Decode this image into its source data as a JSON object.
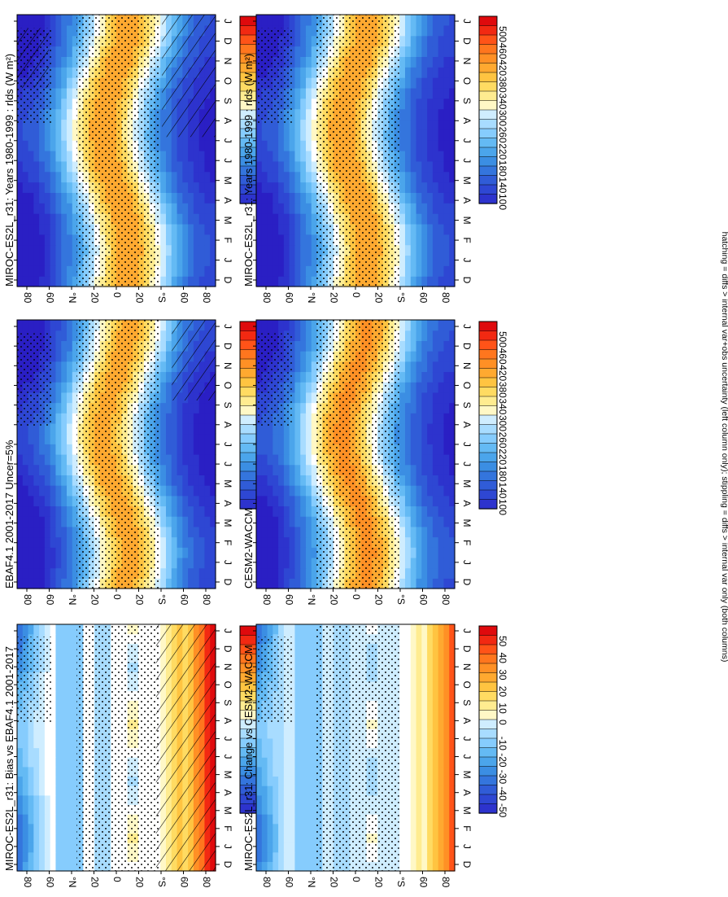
{
  "figure": {
    "footnote": "hatching = diffs > internal var+obs uncertainty (left column only); stippling = diffs > internal var only (both columns)"
  },
  "colors": {
    "abs_scale": [
      "#ffffff",
      "#fff5b0",
      "#ffe16a",
      "#ffc13d",
      "#ff9c28",
      "#ff7a1f",
      "#ff4a16",
      "#e80e0e",
      "#c8000a"
    ],
    "cool_scale": [
      "#ffffff",
      "#bde6ff",
      "#8fd0ff",
      "#60b8f3",
      "#3f9ae6",
      "#3478de",
      "#2f56d6",
      "#2e3ad0",
      "#2a1fc4"
    ],
    "frame": "#000000"
  },
  "chart_data": [
    {
      "id": "p1",
      "type": "heatmap",
      "kind": "abs",
      "title": "MIROC-ES2L_r31: Years 1980-1999 : rlds (W m²)",
      "months": [
        "D",
        "J",
        "F",
        "M",
        "A",
        "M",
        "J",
        "J",
        "A",
        "S",
        "O",
        "N",
        "D",
        "J"
      ],
      "lat_labels": [
        "80",
        "60",
        "°N",
        "20",
        "0",
        "20",
        "°S",
        "60",
        "80"
      ],
      "lat_range": [
        -90,
        90
      ],
      "hatch": "left",
      "stipple": true,
      "colorbar": {
        "ticks": [
          "500",
          "460",
          "420",
          "380",
          "340",
          "300",
          "260",
          "220",
          "180",
          "140",
          "100"
        ],
        "range": [
          80,
          520
        ]
      }
    },
    {
      "id": "p2",
      "type": "heatmap",
      "kind": "abs",
      "title": "EBAF4.1 2001-2017 Uncer=5%",
      "months": [
        "D",
        "J",
        "F",
        "M",
        "A",
        "M",
        "J",
        "J",
        "A",
        "S",
        "O",
        "N",
        "D",
        "J"
      ],
      "lat_labels": [
        "80",
        "60",
        "°N",
        "20",
        "0",
        "20",
        "°S",
        "60",
        "80"
      ],
      "lat_range": [
        -90,
        90
      ],
      "hatch": "south",
      "stipple": true,
      "colorbar": {
        "ticks": [
          "500",
          "460",
          "420",
          "380",
          "340",
          "300",
          "260",
          "220",
          "180",
          "140",
          "100"
        ],
        "range": [
          80,
          520
        ]
      }
    },
    {
      "id": "p3",
      "type": "heatmap",
      "kind": "diff",
      "title": "MIROC-ES2L_r31: Bias vs EBAF4.1 2001-2017",
      "months": [
        "D",
        "J",
        "F",
        "M",
        "A",
        "M",
        "J",
        "J",
        "A",
        "S",
        "O",
        "N",
        "D",
        "J"
      ],
      "lat_labels": [
        "80",
        "60",
        "°N",
        "20",
        "0",
        "20",
        "°S",
        "60",
        "80"
      ],
      "lat_range": [
        -90,
        90
      ],
      "hatch": "southdiff",
      "stipple": true,
      "colorbar": {
        "ticks": [
          "50",
          "40",
          "30",
          "20",
          "10",
          "0",
          "-10",
          "-20",
          "-30",
          "-40",
          "-50"
        ],
        "range": [
          -55,
          55
        ]
      }
    },
    {
      "id": "p4",
      "type": "heatmap",
      "kind": "abs",
      "title": "MIROC-ES2L_r31: Years 1980-1999 : rlds (W m²)",
      "months": [
        "D",
        "J",
        "F",
        "M",
        "A",
        "M",
        "J",
        "J",
        "A",
        "S",
        "O",
        "N",
        "D",
        "J"
      ],
      "lat_labels": [
        "80",
        "60",
        "°N",
        "20",
        "0",
        "20",
        "°S",
        "60",
        "80"
      ],
      "lat_range": [
        -90,
        90
      ],
      "hatch": "none",
      "stipple": true,
      "colorbar": {
        "ticks": [
          "500",
          "460",
          "420",
          "380",
          "340",
          "300",
          "260",
          "220",
          "180",
          "140",
          "100"
        ],
        "range": [
          80,
          520
        ]
      }
    },
    {
      "id": "p5",
      "type": "heatmap",
      "kind": "abs",
      "title": "CESM2-WACCM",
      "months": [
        "D",
        "J",
        "F",
        "M",
        "A",
        "M",
        "J",
        "J",
        "A",
        "S",
        "O",
        "N",
        "D",
        "J"
      ],
      "lat_labels": [
        "80",
        "60",
        "°N",
        "20",
        "0",
        "20",
        "°S",
        "60",
        "80"
      ],
      "lat_range": [
        -90,
        90
      ],
      "hatch": "none",
      "stipple": true,
      "colorbar": {
        "ticks": [
          "500",
          "460",
          "420",
          "380",
          "340",
          "300",
          "260",
          "220",
          "180",
          "140",
          "100"
        ],
        "range": [
          80,
          520
        ]
      }
    },
    {
      "id": "p6",
      "type": "heatmap",
      "kind": "diff",
      "title": "MIROC-ES2L_r31: Change vs CESM2-WACCM",
      "months": [
        "D",
        "J",
        "F",
        "M",
        "A",
        "M",
        "J",
        "J",
        "A",
        "S",
        "O",
        "N",
        "D",
        "J"
      ],
      "lat_labels": [
        "80",
        "60",
        "°N",
        "20",
        "0",
        "20",
        "°S",
        "60",
        "80"
      ],
      "lat_range": [
        -90,
        90
      ],
      "hatch": "none",
      "stipple": true,
      "colorbar": {
        "ticks": [
          "50",
          "40",
          "30",
          "20",
          "10",
          "0",
          "-10",
          "-20",
          "-30",
          "-40",
          "-50"
        ],
        "range": [
          -55,
          55
        ]
      }
    }
  ]
}
